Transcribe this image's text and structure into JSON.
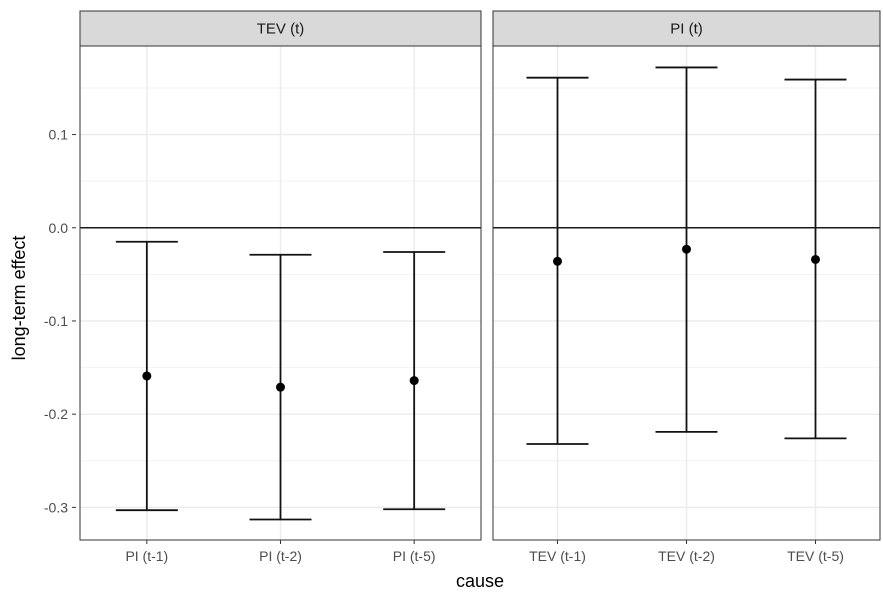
{
  "chart_data": {
    "type": "scatter",
    "xlabel": "cause",
    "ylabel": "long-term effect",
    "ylim": [
      -0.335,
      0.195
    ],
    "yticks": [
      -0.3,
      -0.2,
      -0.1,
      0.0,
      0.1
    ],
    "ytick_labels": [
      "-0.3",
      "-0.2",
      "-0.1",
      "0.0",
      "0.1"
    ],
    "reference_line_y": 0.0,
    "grid": true,
    "panels": [
      {
        "strip_label": "TEV (t)",
        "categories": [
          "PI (t-1)",
          "PI (t-2)",
          "PI (t-5)"
        ],
        "estimates": [
          -0.159,
          -0.171,
          -0.164
        ],
        "lower": [
          -0.303,
          -0.313,
          -0.302
        ],
        "upper": [
          -0.015,
          -0.029,
          -0.026
        ]
      },
      {
        "strip_label": "PI (t)",
        "categories": [
          "TEV (t-1)",
          "TEV (t-2)",
          "TEV (t-5)"
        ],
        "estimates": [
          -0.036,
          -0.023,
          -0.034
        ],
        "lower": [
          -0.232,
          -0.219,
          -0.226
        ],
        "upper": [
          0.161,
          0.172,
          0.159
        ]
      }
    ]
  }
}
